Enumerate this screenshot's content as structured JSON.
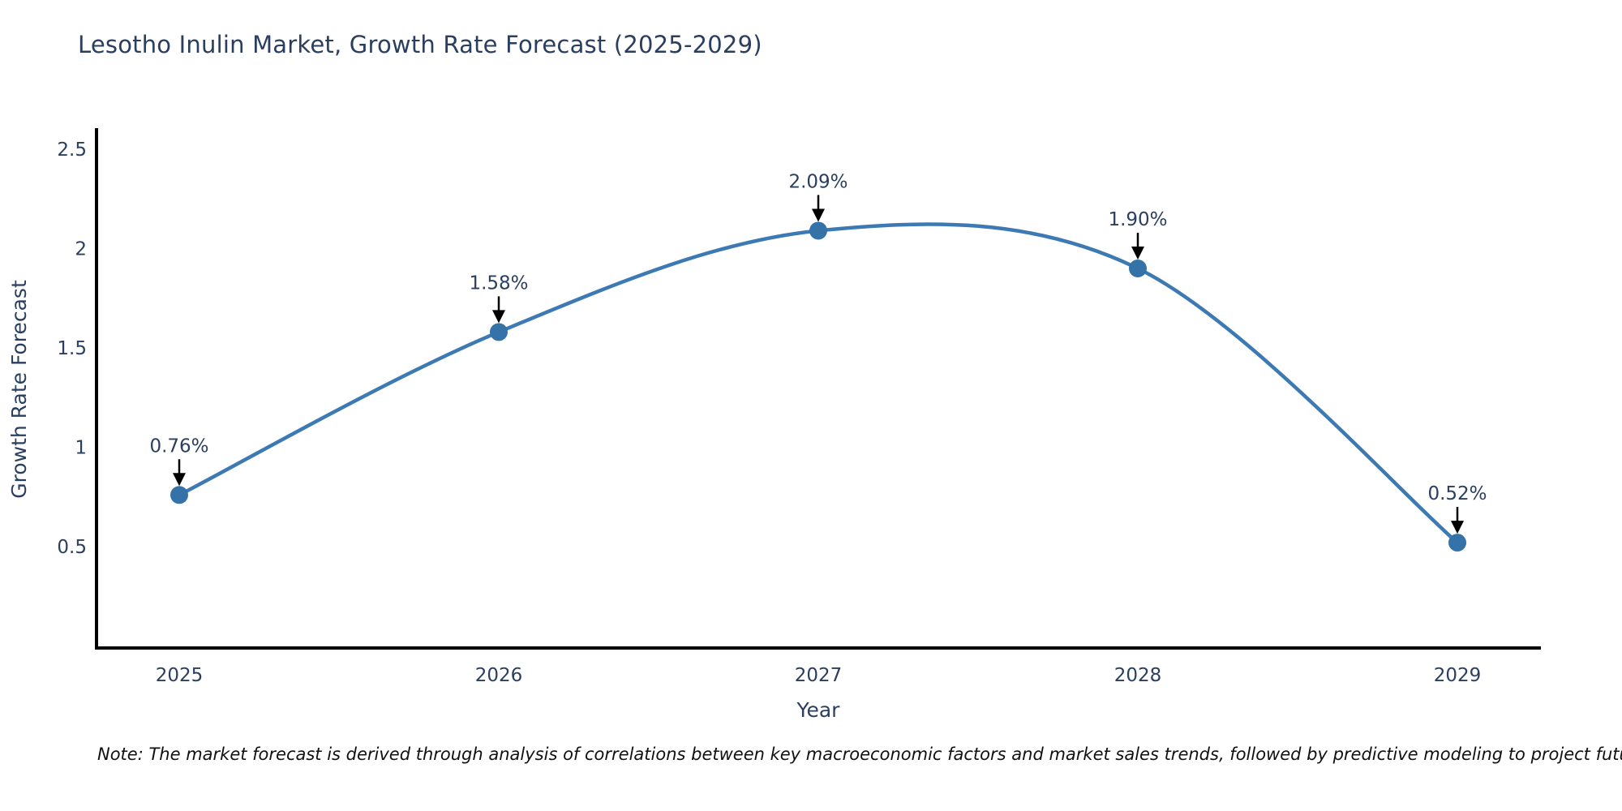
{
  "title": "Lesotho Inulin Market, Growth Rate Forecast (2025-2029)",
  "note": "Note: The market forecast is derived through analysis of correlations between key macroeconomic factors and market sales trends, followed by predictive modeling to project future sales",
  "chart_data": {
    "type": "line",
    "line_shape": "spline",
    "title": "Lesotho Inulin Market, Growth Rate Forecast (2025-2029)",
    "xlabel": "Year",
    "ylabel": "Growth Rate Forecast",
    "categories": [
      "2025",
      "2026",
      "2027",
      "2028",
      "2029"
    ],
    "series": [
      {
        "name": "Growth Rate Forecast",
        "values": [
          0.76,
          1.58,
          2.09,
          1.9,
          0.52
        ]
      }
    ],
    "point_labels": [
      "0.76%",
      "1.58%",
      "2.09%",
      "1.90%",
      "0.52%"
    ],
    "yticks": [
      0.5,
      1,
      1.5,
      2,
      2.5
    ],
    "ylim": [
      0,
      2.6
    ],
    "grid": false,
    "legend_position": "none",
    "colors": {
      "line": "#3d7ab3",
      "marker": "#3572a7",
      "axis": "#000000",
      "text": "#2a3f5f",
      "annotation_arrow": "#000000",
      "background": "#ffffff"
    }
  }
}
